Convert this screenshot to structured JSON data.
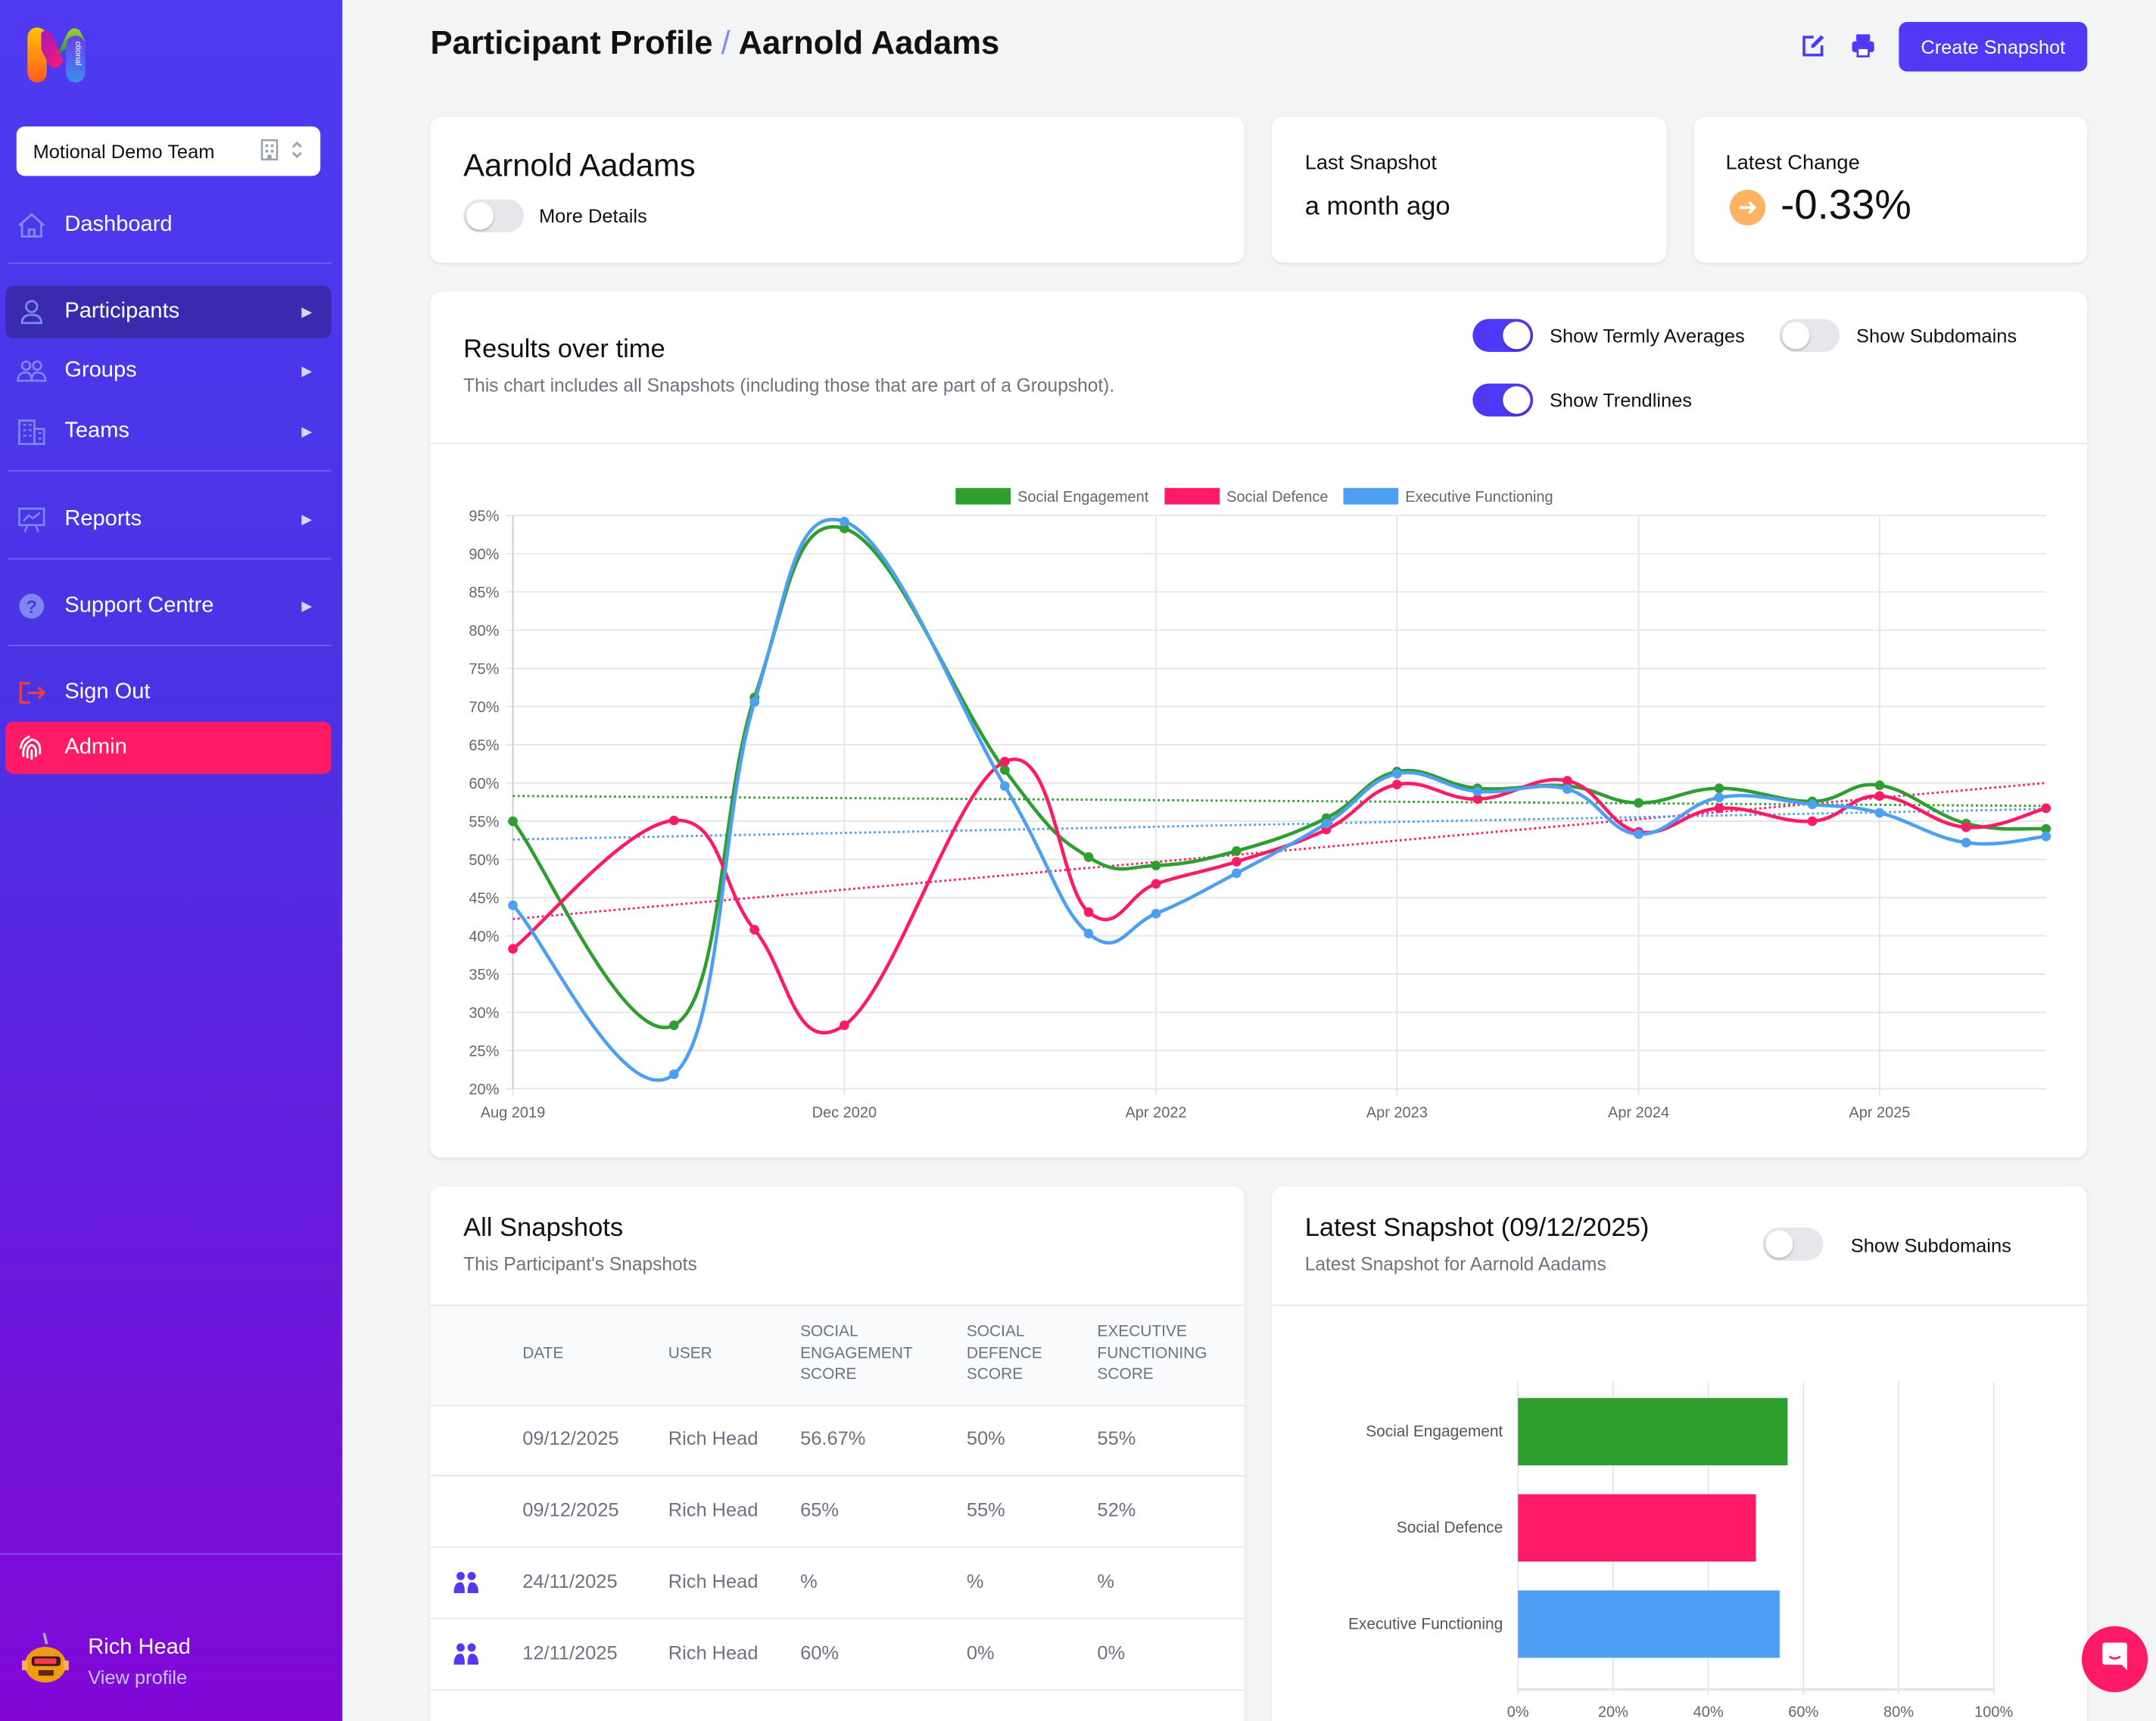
{
  "sidebar": {
    "logo_text": "otional",
    "team_select": {
      "value": "Motional Demo Team",
      "icon": "building-icon"
    },
    "items": [
      {
        "label": "Dashboard",
        "icon": "home-icon"
      },
      {
        "label": "Participants",
        "icon": "user-icon",
        "active": true,
        "arrow": "▶"
      },
      {
        "label": "Groups",
        "icon": "users-icon",
        "arrow": "▶"
      },
      {
        "label": "Teams",
        "icon": "building-icon",
        "arrow": "▶"
      },
      {
        "label": "Reports",
        "icon": "presentation-chart-icon",
        "arrow": "▶"
      },
      {
        "label": "Support Centre",
        "icon": "question-circle-icon",
        "arrow": "▶"
      },
      {
        "label": "Sign Out",
        "icon": "sign-out-icon"
      },
      {
        "label": "Admin",
        "icon": "fingerprint-icon"
      }
    ],
    "profile": {
      "name": "Rich Head",
      "link": "View profile"
    }
  },
  "header": {
    "title": "Participant Profile",
    "separator": "/",
    "participant": "Aarnold Aadams",
    "create_button": "Create Snapshot"
  },
  "summary": {
    "name": "Aarnold Aadams",
    "more_details_label": "More Details",
    "more_details_on": false,
    "last_snapshot_label": "Last Snapshot",
    "last_snapshot_value": "a month ago",
    "latest_change_label": "Latest Change",
    "latest_change_value": "-0.33%",
    "latest_change_color": "#fdb462"
  },
  "results": {
    "title": "Results over time",
    "subtitle": "This chart includes all Snapshots (including those that are part of a Groupshot).",
    "toggles": [
      {
        "label": "Show Termly Averages",
        "on": true
      },
      {
        "label": "Show Subdomains",
        "on": false
      },
      {
        "label": "Show Trendlines",
        "on": true
      }
    ]
  },
  "chart_data": [
    {
      "type": "line",
      "legend": "top",
      "grid": true,
      "ylim": [
        20,
        95
      ],
      "y_ticks": [
        "95%",
        "90%",
        "85%",
        "80%",
        "75%",
        "70%",
        "65%",
        "60%",
        "55%",
        "50%",
        "45%",
        "40%",
        "35%",
        "30%",
        "25%",
        "20%"
      ],
      "xlim": [
        "2019-08-01",
        "2025-12-09"
      ],
      "x_ticks": [
        {
          "label": "Aug 2019",
          "date": "2019-08-01"
        },
        {
          "label": "Dec 2020",
          "date": "2020-12-15"
        },
        {
          "label": "Apr 2022",
          "date": "2022-04-01"
        },
        {
          "label": "Apr 2023",
          "date": "2023-04-01"
        },
        {
          "label": "Apr 2024",
          "date": "2024-04-01"
        },
        {
          "label": "Apr 2025",
          "date": "2025-04-01"
        }
      ],
      "x": [
        "2019-08-01",
        "2020-04-01",
        "2020-08-01",
        "2020-12-15",
        "2021-08-15",
        "2021-12-20",
        "2022-04-01",
        "2022-08-01",
        "2022-12-15",
        "2023-04-01",
        "2023-08-01",
        "2023-12-15",
        "2024-04-01",
        "2024-08-01",
        "2024-12-20",
        "2025-04-01",
        "2025-08-10",
        "2025-12-09"
      ],
      "series": [
        {
          "name": "Social Engagement",
          "color": "#2e9e2e",
          "values": [
            55.0,
            28.3,
            71.2,
            93.3,
            61.7,
            50.3,
            49.2,
            51.1,
            55.4,
            61.5,
            59.3,
            59.6,
            57.4,
            59.3,
            57.6,
            59.7,
            54.7,
            54.0
          ],
          "trend": [
            58.3,
            57.0
          ]
        },
        {
          "name": "Social Defence",
          "color": "#ff1a66",
          "values": [
            38.3,
            55.1,
            40.8,
            28.3,
            62.8,
            43.1,
            46.8,
            49.7,
            53.9,
            59.8,
            57.9,
            60.3,
            53.6,
            56.7,
            55.0,
            58.3,
            54.2,
            56.7
          ],
          "trend": [
            42.2,
            60.0
          ]
        },
        {
          "name": "Executive Functioning",
          "color": "#4c9ff2",
          "values": [
            44.0,
            21.9,
            70.6,
            94.2,
            59.6,
            40.3,
            42.9,
            48.2,
            54.7,
            61.2,
            58.9,
            59.2,
            53.3,
            58.1,
            57.2,
            56.1,
            52.2,
            53.0
          ],
          "trend": [
            52.6,
            56.6
          ]
        }
      ]
    },
    {
      "type": "bar",
      "orientation": "horizontal",
      "categories": [
        "Social Engagement",
        "Social Defence",
        "Executive Functioning"
      ],
      "values": [
        56.67,
        50,
        55
      ],
      "colors": [
        "#2e9e2e",
        "#ff1a66",
        "#4c9ff2"
      ],
      "xlim": [
        0,
        100
      ],
      "x_ticks": [
        "0%",
        "20%",
        "40%",
        "60%",
        "80%",
        "100%"
      ],
      "grid": true
    }
  ],
  "snapshots": {
    "title": "All Snapshots",
    "subtitle": "This Participant's Snapshots",
    "columns": [
      "",
      "Date",
      "User",
      "Social Engagement Score",
      "Social Defence Score",
      "Executive Functioning Score"
    ],
    "rows": [
      {
        "groupshot": false,
        "date": "09/12/2025",
        "user": "Rich Head",
        "se": "56.67%",
        "sd": "50%",
        "ef": "55%"
      },
      {
        "groupshot": false,
        "date": "09/12/2025",
        "user": "Rich Head",
        "se": "65%",
        "sd": "55%",
        "ef": "52%"
      },
      {
        "groupshot": true,
        "date": "24/11/2025",
        "user": "Rich Head",
        "se": "%",
        "sd": "%",
        "ef": "%"
      },
      {
        "groupshot": true,
        "date": "12/11/2025",
        "user": "Rich Head",
        "se": "60%",
        "sd": "0%",
        "ef": "0%"
      }
    ]
  },
  "latest": {
    "title": "Latest Snapshot (09/12/2025)",
    "subtitle": "Latest Snapshot for Aarnold Aadams",
    "toggle_label": "Show Subdomains",
    "toggle_on": false
  },
  "colors": {
    "accent": "#5139f5",
    "admin": "#ff1a66",
    "sign_out": "#ef3b3b"
  }
}
